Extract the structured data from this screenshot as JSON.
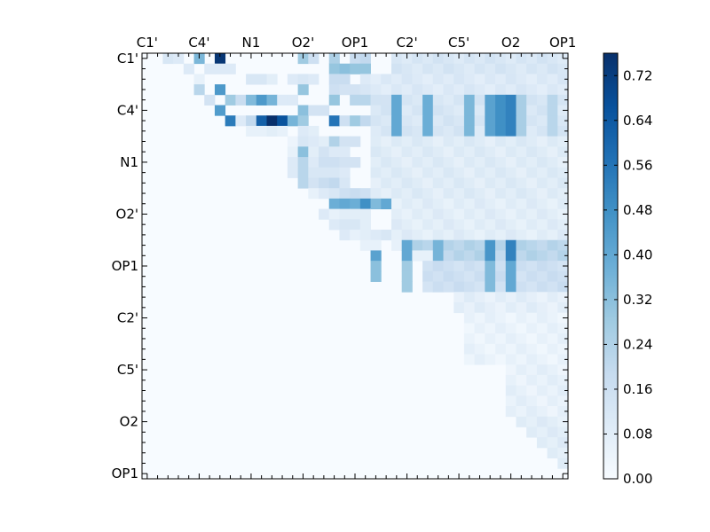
{
  "chart_data": {
    "type": "heatmap",
    "title": "",
    "xlabel": "",
    "ylabel": "",
    "n": 41,
    "triangle": "upper",
    "x_tick_labels": [
      "C1'",
      "C4'",
      "N1",
      "O2'",
      "OP1",
      "C2'",
      "C5'",
      "O2",
      "OP1"
    ],
    "x_tick_indices": [
      0,
      5,
      10,
      15,
      20,
      25,
      30,
      35,
      40
    ],
    "y_tick_labels": [
      "C1'",
      "C4'",
      "N1",
      "O2'",
      "OP1",
      "C2'",
      "C5'",
      "O2",
      "OP1"
    ],
    "y_tick_indices": [
      0,
      5,
      10,
      15,
      20,
      25,
      30,
      35,
      40
    ],
    "colorbar": {
      "min": 0.0,
      "max": 0.76,
      "ticks": [
        "0.00",
        "0.08",
        "0.16",
        "0.24",
        "0.32",
        "0.40",
        "0.48",
        "0.56",
        "0.64",
        "0.72"
      ],
      "colormap": "Blues",
      "stops": [
        "#f7fbff",
        "#deebf7",
        "#c6dbef",
        "#9ecae1",
        "#6baed6",
        "#4292c6",
        "#2171b5",
        "#08519c",
        "#08306b"
      ]
    },
    "cells": [
      [
        0,
        2,
        0.12
      ],
      [
        0,
        3,
        0.1
      ],
      [
        0,
        5,
        0.35
      ],
      [
        0,
        7,
        0.74
      ],
      [
        0,
        15,
        0.28
      ],
      [
        0,
        16,
        0.16
      ],
      [
        0,
        18,
        0.25
      ],
      [
        0,
        20,
        0.18
      ],
      [
        0,
        21,
        0.2
      ],
      [
        1,
        4,
        0.1
      ],
      [
        1,
        6,
        0.1
      ],
      [
        1,
        7,
        0.1
      ],
      [
        1,
        8,
        0.1
      ],
      [
        1,
        18,
        0.3
      ],
      [
        1,
        19,
        0.32
      ],
      [
        1,
        20,
        0.3
      ],
      [
        1,
        21,
        0.3
      ],
      [
        2,
        5,
        0.06
      ],
      [
        2,
        10,
        0.12
      ],
      [
        2,
        11,
        0.12
      ],
      [
        2,
        12,
        0.08
      ],
      [
        2,
        14,
        0.1
      ],
      [
        2,
        15,
        0.12
      ],
      [
        2,
        16,
        0.1
      ],
      [
        2,
        18,
        0.18
      ],
      [
        2,
        19,
        0.18
      ],
      [
        3,
        5,
        0.22
      ],
      [
        3,
        7,
        0.45
      ],
      [
        3,
        15,
        0.3
      ],
      [
        3,
        18,
        0.16
      ],
      [
        3,
        19,
        0.14
      ],
      [
        3,
        20,
        0.14
      ],
      [
        4,
        6,
        0.14
      ],
      [
        4,
        8,
        0.28
      ],
      [
        4,
        9,
        0.18
      ],
      [
        4,
        10,
        0.34
      ],
      [
        4,
        11,
        0.45
      ],
      [
        4,
        12,
        0.36
      ],
      [
        4,
        13,
        0.1
      ],
      [
        4,
        14,
        0.1
      ],
      [
        4,
        18,
        0.3
      ],
      [
        4,
        20,
        0.22
      ],
      [
        4,
        21,
        0.22
      ],
      [
        4,
        23,
        0.14
      ],
      [
        5,
        7,
        0.44
      ],
      [
        5,
        15,
        0.32
      ],
      [
        5,
        16,
        0.14
      ],
      [
        5,
        17,
        0.14
      ],
      [
        6,
        8,
        0.54
      ],
      [
        6,
        9,
        0.1
      ],
      [
        6,
        10,
        0.2
      ],
      [
        6,
        11,
        0.62
      ],
      [
        6,
        12,
        0.76
      ],
      [
        6,
        13,
        0.66
      ],
      [
        6,
        14,
        0.36
      ],
      [
        6,
        15,
        0.28
      ],
      [
        6,
        18,
        0.56
      ],
      [
        6,
        19,
        0.16
      ],
      [
        6,
        20,
        0.28
      ],
      [
        6,
        21,
        0.2
      ],
      [
        7,
        10,
        0.06
      ],
      [
        7,
        11,
        0.06
      ],
      [
        7,
        12,
        0.08
      ],
      [
        7,
        13,
        0.06
      ],
      [
        7,
        15,
        0.1
      ],
      [
        7,
        16,
        0.08
      ],
      [
        8,
        14,
        0.04
      ],
      [
        8,
        15,
        0.12
      ],
      [
        8,
        16,
        0.1
      ],
      [
        8,
        17,
        0.08
      ],
      [
        8,
        18,
        0.24
      ],
      [
        8,
        19,
        0.14
      ],
      [
        8,
        20,
        0.14
      ],
      [
        9,
        14,
        0.06
      ],
      [
        9,
        15,
        0.32
      ],
      [
        9,
        16,
        0.08
      ],
      [
        9,
        17,
        0.14
      ],
      [
        9,
        18,
        0.1
      ],
      [
        9,
        19,
        0.1
      ],
      [
        10,
        14,
        0.1
      ],
      [
        10,
        15,
        0.22
      ],
      [
        10,
        16,
        0.1
      ],
      [
        10,
        17,
        0.16
      ],
      [
        10,
        18,
        0.16
      ],
      [
        10,
        19,
        0.14
      ],
      [
        10,
        20,
        0.14
      ],
      [
        11,
        14,
        0.1
      ],
      [
        11,
        15,
        0.22
      ],
      [
        11,
        16,
        0.12
      ],
      [
        11,
        17,
        0.12
      ],
      [
        11,
        18,
        0.12
      ],
      [
        11,
        19,
        0.1
      ],
      [
        12,
        15,
        0.22
      ],
      [
        12,
        16,
        0.14
      ],
      [
        12,
        17,
        0.18
      ],
      [
        12,
        18,
        0.2
      ],
      [
        12,
        19,
        0.12
      ],
      [
        13,
        16,
        0.06
      ],
      [
        13,
        17,
        0.1
      ],
      [
        13,
        18,
        0.12
      ],
      [
        13,
        19,
        0.16
      ],
      [
        13,
        20,
        0.18
      ],
      [
        13,
        21,
        0.16
      ],
      [
        14,
        18,
        0.38
      ],
      [
        14,
        19,
        0.4
      ],
      [
        14,
        20,
        0.38
      ],
      [
        14,
        21,
        0.48
      ],
      [
        14,
        22,
        0.34
      ],
      [
        14,
        23,
        0.4
      ],
      [
        15,
        17,
        0.1
      ],
      [
        15,
        18,
        0.06
      ],
      [
        15,
        19,
        0.08
      ],
      [
        15,
        20,
        0.08
      ],
      [
        15,
        21,
        0.08
      ],
      [
        16,
        18,
        0.1
      ],
      [
        16,
        19,
        0.12
      ],
      [
        16,
        20,
        0.12
      ],
      [
        16,
        21,
        0.08
      ],
      [
        17,
        19,
        0.1
      ],
      [
        17,
        20,
        0.06
      ],
      [
        17,
        21,
        0.08
      ],
      [
        17,
        22,
        0.1
      ],
      [
        17,
        23,
        0.12
      ],
      [
        18,
        21,
        0.06
      ],
      [
        18,
        22,
        0.06
      ],
      [
        18,
        24,
        0.06
      ],
      [
        19,
        26,
        0.06
      ],
      [
        19,
        27,
        0.06
      ]
    ],
    "bands": [
      {
        "rows": [
          0,
          1
        ],
        "cols": [
          24,
          40
        ],
        "value": 0.12
      },
      {
        "rows": [
          2,
          3
        ],
        "cols": [
          21,
          40
        ],
        "value": 0.1
      },
      {
        "rows": [
          4,
          7
        ],
        "cols": [
          22,
          40
        ],
        "value": 0.12
      },
      {
        "rows": [
          8,
          13
        ],
        "cols": [
          22,
          40
        ],
        "value": 0.09
      },
      {
        "rows": [
          14,
          17
        ],
        "cols": [
          24,
          40
        ],
        "value": 0.08
      },
      {
        "rows": [
          18,
          19
        ],
        "cols": [
          26,
          40
        ],
        "value": 0.22
      },
      {
        "rows": [
          20,
          22
        ],
        "cols": [
          27,
          40
        ],
        "value": 0.16
      },
      {
        "rows": [
          23,
          24
        ],
        "cols": [
          30,
          40
        ],
        "value": 0.07
      },
      {
        "rows": [
          25,
          29
        ],
        "cols": [
          31,
          40
        ],
        "value": 0.05
      },
      {
        "rows": [
          30,
          34
        ],
        "cols": [
          35,
          40
        ],
        "value": 0.06
      },
      {
        "rows": [
          35,
          39
        ],
        "cols": [
          36,
          40
        ],
        "value": 0.08
      }
    ],
    "hotcols": [
      {
        "rows": [
          4,
          7
        ],
        "col": 24,
        "value": 0.4
      },
      {
        "rows": [
          4,
          7
        ],
        "col": 27,
        "value": 0.38
      },
      {
        "rows": [
          4,
          7
        ],
        "col": 31,
        "value": 0.35
      },
      {
        "rows": [
          4,
          7
        ],
        "col": 33,
        "value": 0.42
      },
      {
        "rows": [
          4,
          7
        ],
        "col": 34,
        "value": 0.48
      },
      {
        "rows": [
          4,
          7
        ],
        "col": 35,
        "value": 0.52
      },
      {
        "rows": [
          4,
          7
        ],
        "col": 36,
        "value": 0.26
      },
      {
        "rows": [
          4,
          7
        ],
        "col": 39,
        "value": 0.22
      },
      {
        "rows": [
          18,
          19
        ],
        "col": 22,
        "value": 0.42
      },
      {
        "rows": [
          18,
          19
        ],
        "col": 25,
        "value": 0.4
      },
      {
        "rows": [
          18,
          19
        ],
        "col": 28,
        "value": 0.36
      },
      {
        "rows": [
          18,
          19
        ],
        "col": 33,
        "value": 0.46
      },
      {
        "rows": [
          18,
          19
        ],
        "col": 35,
        "value": 0.52
      },
      {
        "rows": [
          20,
          22
        ],
        "col": 22,
        "value": 0.32
      },
      {
        "rows": [
          20,
          22
        ],
        "col": 25,
        "value": 0.28
      },
      {
        "rows": [
          20,
          22
        ],
        "col": 33,
        "value": 0.34
      },
      {
        "rows": [
          20,
          22
        ],
        "col": 35,
        "value": 0.4
      }
    ]
  }
}
